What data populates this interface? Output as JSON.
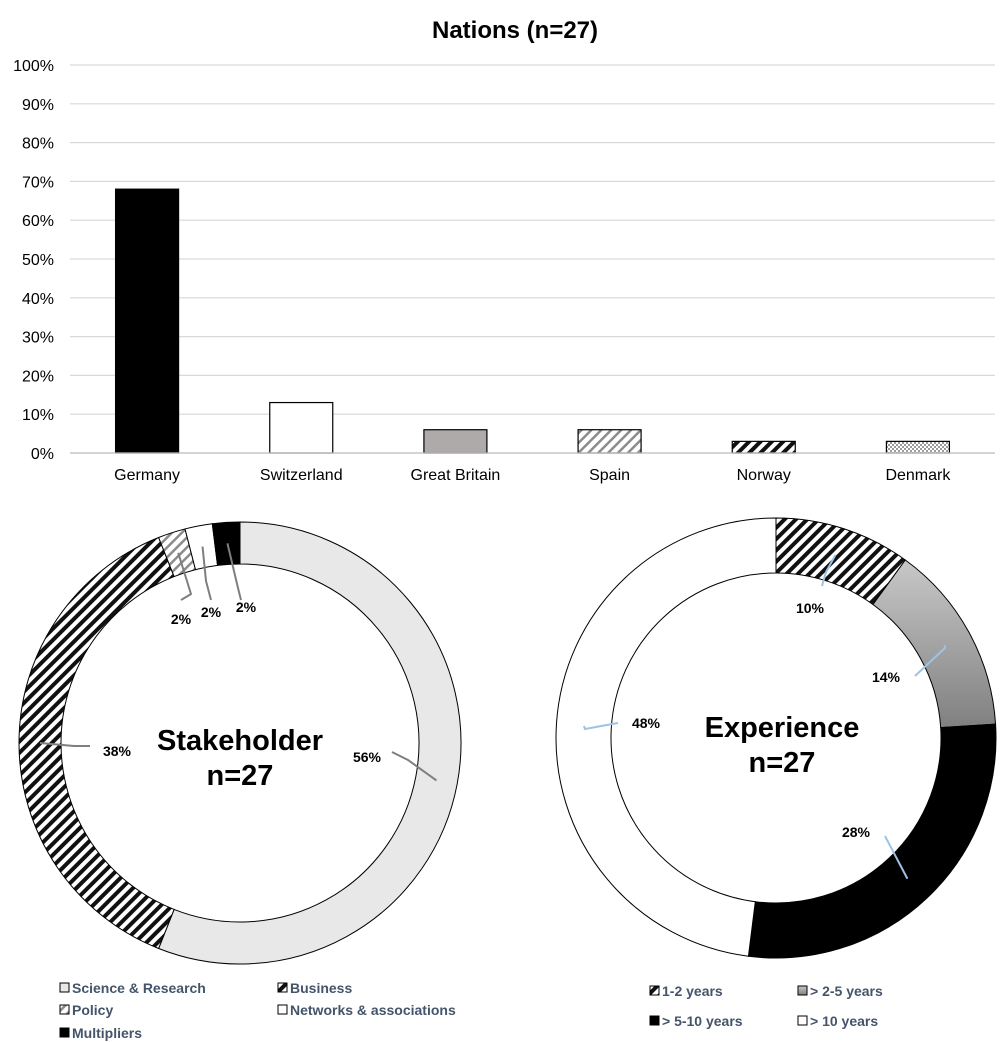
{
  "colors": {
    "axis_text": "#000000",
    "grid": "#d9d9d9",
    "legend_text": "#44546a",
    "leader": "#7f7f7f",
    "leader_light": "#9dc3e6"
  },
  "chart_data": [
    {
      "type": "bar",
      "title": "Nations (n=27)",
      "categories": [
        "Germany",
        "Switzerland",
        "Great Britain",
        "Spain",
        "Norway",
        "Denmark"
      ],
      "values": [
        68,
        13,
        6,
        6,
        3,
        3
      ],
      "fills": [
        "solid-black",
        "white",
        "solid-gray",
        "diagonal-light",
        "diagonal-dense",
        "dotted"
      ],
      "ylim": [
        0,
        100
      ],
      "yticks": [
        "0%",
        "10%",
        "20%",
        "30%",
        "40%",
        "50%",
        "60%",
        "70%",
        "80%",
        "90%",
        "100%"
      ],
      "grid": true,
      "legend": "none"
    },
    {
      "type": "pie",
      "variant": "donut",
      "center_title": "Stakeholder",
      "center_subtitle": "n=27",
      "slices": [
        {
          "name": "Science & Research",
          "value": 56,
          "label": "56%",
          "fill": "light-gray"
        },
        {
          "name": "Business",
          "value": 38,
          "label": "38%",
          "fill": "diagonal-dense"
        },
        {
          "name": "Policy",
          "value": 2,
          "label": "2%",
          "fill": "diagonal-light"
        },
        {
          "name": "Networks & associations",
          "value": 2,
          "label": "2%",
          "fill": "white"
        },
        {
          "name": "Multipliers",
          "value": 2,
          "label": "2%",
          "fill": "black"
        }
      ],
      "legend": "bottom"
    },
    {
      "type": "pie",
      "variant": "donut",
      "center_title": "Experience",
      "center_subtitle": "n=27",
      "slices": [
        {
          "name": "1-2 years",
          "value": 10,
          "label": "10%",
          "fill": "diagonal-dense"
        },
        {
          "name": "> 2-5 years",
          "value": 14,
          "label": "14%",
          "fill": "gradient-gray"
        },
        {
          "name": "> 5-10 years",
          "value": 28,
          "label": "28%",
          "fill": "black"
        },
        {
          "name": "> 10 years",
          "value": 48,
          "label": "48%",
          "fill": "white"
        }
      ],
      "legend": "bottom"
    }
  ]
}
